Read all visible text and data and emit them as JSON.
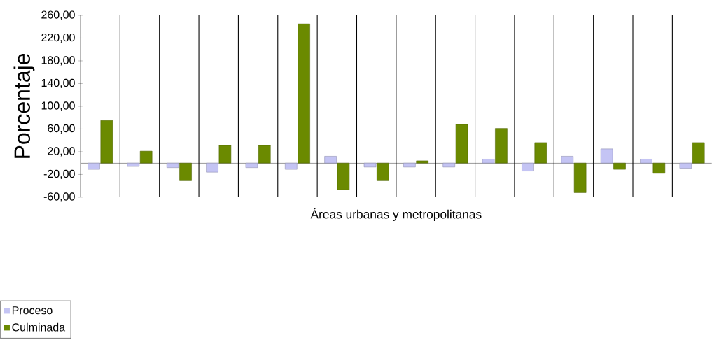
{
  "chart_data": {
    "type": "bar",
    "ylabel": "Porcentaje",
    "xlabel": "Áreas urbanas y metropolitanas",
    "categories": [
      null,
      null,
      null,
      null,
      null,
      null,
      null,
      null,
      null,
      null,
      null,
      null,
      null,
      null,
      null,
      null
    ],
    "series": [
      {
        "name": "Proceso",
        "color": "#c4c4f4",
        "values": [
          -11,
          -6,
          -8,
          -16,
          -8,
          -11,
          12,
          -7,
          -7,
          -7,
          7,
          -14,
          12,
          25,
          7,
          -9
        ]
      },
      {
        "name": "Culminada",
        "color": "#6b8a00",
        "values": [
          75,
          21,
          -31,
          31,
          31,
          245,
          -47,
          -31,
          4,
          68,
          61,
          36,
          -52,
          -11,
          -18,
          36
        ]
      }
    ],
    "ylim": [
      -60,
      260
    ],
    "yticks": [
      {
        "value": -60,
        "label": "-60,00"
      },
      {
        "value": -20,
        "label": "-20,00"
      },
      {
        "value": 20,
        "label": "20,00"
      },
      {
        "value": 60,
        "label": "60,00"
      },
      {
        "value": 100,
        "label": "100,00"
      },
      {
        "value": 140,
        "label": "140,00"
      },
      {
        "value": 180,
        "label": "180,00"
      },
      {
        "value": 220,
        "label": "220,00"
      },
      {
        "value": 260,
        "label": "260,00"
      }
    ],
    "grid": "x",
    "legend": "bottom left",
    "tick_labels": "y"
  }
}
